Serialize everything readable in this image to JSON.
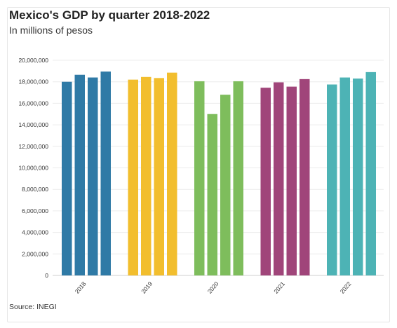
{
  "header": {
    "title": "Mexico's GDP by quarter 2018-2022",
    "subtitle": "In millions of pesos"
  },
  "footer": {
    "source": "Source: INEGI"
  },
  "chart_data": {
    "type": "bar",
    "title": "Mexico's GDP by quarter 2018-2022",
    "subtitle": "In millions of pesos",
    "xlabel": "",
    "ylabel": "",
    "ylim": [
      0,
      20000000
    ],
    "yticks": [
      0,
      2000000,
      4000000,
      6000000,
      8000000,
      10000000,
      12000000,
      14000000,
      16000000,
      18000000,
      20000000
    ],
    "ytick_labels": [
      "0",
      "2,000,000",
      "4,000,000",
      "6,000,000",
      "8,000,000",
      "10,000,000",
      "12,000,000",
      "14,000,000",
      "16,000,000",
      "18,000,000",
      "20,000,000"
    ],
    "grid": true,
    "legend": "none",
    "groups": [
      {
        "label": "2018",
        "color": "#2f7aa6",
        "values": [
          18000000,
          18650000,
          18400000,
          18950000
        ]
      },
      {
        "label": "2019",
        "color": "#f2be2e",
        "values": [
          18200000,
          18450000,
          18350000,
          18850000
        ]
      },
      {
        "label": "2020",
        "color": "#7ebd5c",
        "values": [
          18050000,
          15000000,
          16800000,
          18050000
        ]
      },
      {
        "label": "2021",
        "color": "#a0457a",
        "values": [
          17450000,
          17950000,
          17550000,
          18250000
        ]
      },
      {
        "label": "2022",
        "color": "#4db3b5",
        "values": [
          17750000,
          18400000,
          18300000,
          18900000
        ]
      }
    ]
  }
}
